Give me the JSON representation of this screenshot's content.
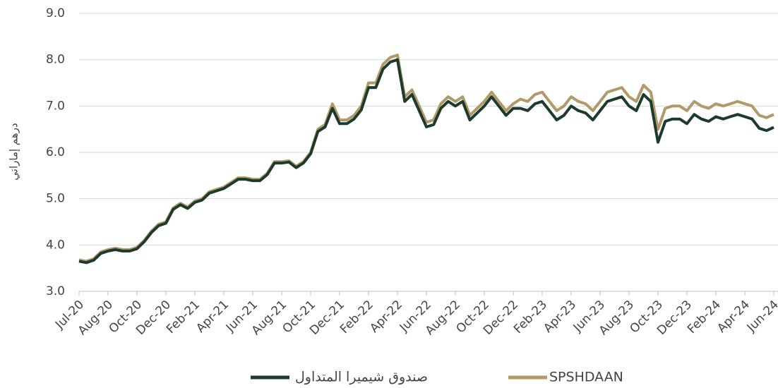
{
  "chart_data": {
    "type": "line",
    "y_label": "درهم إماراتي",
    "categories": [
      "Jul-20",
      null,
      null,
      null,
      "Aug-20",
      null,
      null,
      null,
      "Oct-20",
      null,
      null,
      null,
      "Dec-20",
      null,
      null,
      null,
      "Feb-21",
      null,
      null,
      null,
      "Apr-21",
      null,
      null,
      null,
      "Jun-21",
      null,
      null,
      null,
      "Aug-21",
      null,
      null,
      null,
      "Oct-21",
      null,
      null,
      null,
      "Dec-21",
      null,
      null,
      null,
      "Feb-22",
      null,
      null,
      null,
      "Apr-22",
      null,
      null,
      null,
      "Jun-22",
      null,
      null,
      null,
      "Aug-22",
      null,
      null,
      null,
      "Oct-22",
      null,
      null,
      null,
      "Dec-22",
      null,
      null,
      null,
      "Feb-23",
      null,
      null,
      null,
      "Apr-23",
      null,
      null,
      null,
      "Jun-23",
      null,
      null,
      null,
      "Aug-23",
      null,
      null,
      null,
      "Oct-23",
      null,
      null,
      null,
      "Dec-23",
      null,
      null,
      null,
      "Feb-24",
      null,
      null,
      null,
      "Apr-24",
      null,
      null,
      null,
      "Jun-24"
    ],
    "series": [
      {
        "name": "SPSHDAAN",
        "color": "#b09a6a",
        "values": [
          3.68,
          3.65,
          3.7,
          3.85,
          3.9,
          3.93,
          3.9,
          3.9,
          3.95,
          4.1,
          4.3,
          4.45,
          4.5,
          4.8,
          4.9,
          4.82,
          4.95,
          5.0,
          5.15,
          5.2,
          5.25,
          5.35,
          5.45,
          5.45,
          5.42,
          5.42,
          5.55,
          5.8,
          5.8,
          5.82,
          5.7,
          5.8,
          6.0,
          6.5,
          6.6,
          7.05,
          6.7,
          6.7,
          6.8,
          7.0,
          7.5,
          7.5,
          7.9,
          8.05,
          8.1,
          7.2,
          7.35,
          7.0,
          6.65,
          6.7,
          7.05,
          7.2,
          7.1,
          7.2,
          6.8,
          6.95,
          7.1,
          7.3,
          7.1,
          6.9,
          7.05,
          7.15,
          7.1,
          7.25,
          7.3,
          7.1,
          6.9,
          7.0,
          7.2,
          7.1,
          7.05,
          6.9,
          7.1,
          7.3,
          7.35,
          7.4,
          7.2,
          7.1,
          7.45,
          7.3,
          6.5,
          6.95,
          7.0,
          7.0,
          6.9,
          7.1,
          7.0,
          6.95,
          7.05,
          7.0,
          7.05,
          7.1,
          7.05,
          7.0,
          6.8,
          6.75,
          6.82
        ]
      },
      {
        "name": "صندوق شيميرا المتداول",
        "color": "#1d3a2c",
        "values": [
          3.65,
          3.62,
          3.67,
          3.82,
          3.87,
          3.9,
          3.87,
          3.87,
          3.92,
          4.07,
          4.27,
          4.42,
          4.47,
          4.77,
          4.87,
          4.79,
          4.92,
          4.97,
          5.12,
          5.17,
          5.22,
          5.32,
          5.42,
          5.42,
          5.39,
          5.39,
          5.52,
          5.77,
          5.77,
          5.79,
          5.67,
          5.77,
          5.97,
          6.45,
          6.55,
          6.95,
          6.62,
          6.62,
          6.72,
          6.92,
          7.4,
          7.4,
          7.8,
          7.95,
          8.0,
          7.1,
          7.25,
          6.9,
          6.55,
          6.6,
          6.95,
          7.1,
          7.0,
          7.1,
          6.7,
          6.85,
          7.0,
          7.2,
          7.0,
          6.8,
          6.95,
          6.95,
          6.9,
          7.05,
          7.1,
          6.9,
          6.7,
          6.8,
          7.0,
          6.9,
          6.85,
          6.7,
          6.9,
          7.1,
          7.15,
          7.2,
          7.0,
          6.9,
          7.25,
          7.1,
          6.22,
          6.67,
          6.72,
          6.72,
          6.62,
          6.82,
          6.72,
          6.67,
          6.77,
          6.72,
          6.77,
          6.82,
          6.77,
          6.72,
          6.52,
          6.47,
          6.54
        ]
      }
    ],
    "ylim": [
      3.0,
      9.0
    ],
    "yticks": [
      {
        "value": 3,
        "label": "3.0"
      },
      {
        "value": 4,
        "label": "4.0"
      },
      {
        "value": 5,
        "label": "5.0"
      },
      {
        "value": 6,
        "label": "6.0"
      },
      {
        "value": 7,
        "label": "7.0"
      },
      {
        "value": 8,
        "label": "8.0"
      },
      {
        "value": 9,
        "label": "9.0"
      }
    ],
    "grid": true
  }
}
